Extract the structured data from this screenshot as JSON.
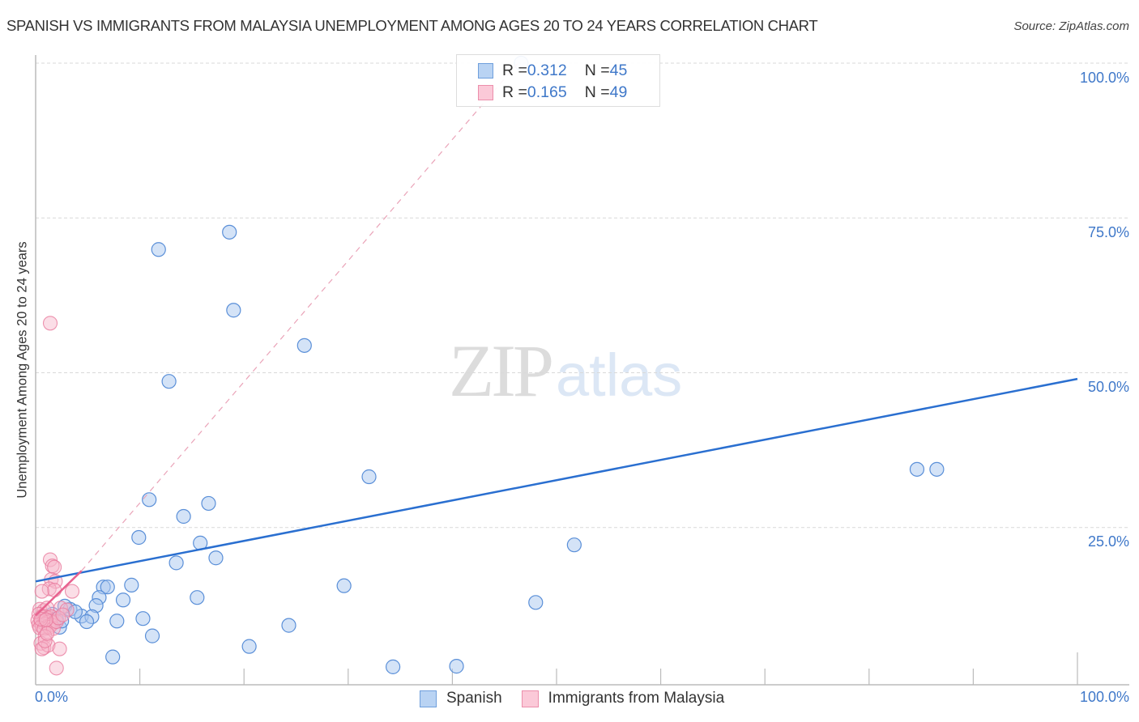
{
  "header": {
    "title": "SPANISH VS IMMIGRANTS FROM MALAYSIA UNEMPLOYMENT AMONG AGES 20 TO 24 YEARS CORRELATION CHART",
    "source": "Source: ZipAtlas.com"
  },
  "watermark": {
    "zip": "ZIP",
    "atlas": "atlas"
  },
  "axes": {
    "ylabel": "Unemployment Among Ages 20 to 24 years",
    "y_ticks": [
      "100.0%",
      "75.0%",
      "50.0%",
      "25.0%"
    ],
    "x_min_label": "0.0%",
    "x_max_label": "100.0%"
  },
  "legend": {
    "rows": [
      {
        "series": "Spanish",
        "r_label": "R = ",
        "r_value": "0.312",
        "n_label": "N = ",
        "n_value": "45",
        "color": "#a9c8f0",
        "border": "#6f9fdc"
      },
      {
        "series": "Immigrants from Malaysia",
        "r_label": "R = ",
        "r_value": "0.165",
        "n_label": "N = ",
        "n_value": "49",
        "color": "#f9c3d3",
        "border": "#ec8eab"
      }
    ],
    "bottom": [
      "Spanish",
      "Immigrants from Malaysia"
    ]
  },
  "colors": {
    "blue_fill": "#a9c8f0",
    "blue_stroke": "#5a8fd8",
    "blue_line": "#2a6fd0",
    "pink_fill": "#f7b6c9",
    "pink_stroke": "#e8799c",
    "pink_line": "#e8628f",
    "axis_text": "#3f78c9",
    "grid": "#d9d9d9"
  },
  "chart_data": {
    "type": "scatter",
    "title": "SPANISH VS IMMIGRANTS FROM MALAYSIA UNEMPLOYMENT AMONG AGES 20 TO 24 YEARS CORRELATION CHART",
    "xlabel": "",
    "ylabel": "Unemployment Among Ages 20 to 24 years",
    "xlim": [
      0,
      100
    ],
    "ylim": [
      0,
      100
    ],
    "x_tick_labels": [
      "0.0%",
      "100.0%"
    ],
    "y_tick_labels": [
      "25.0%",
      "50.0%",
      "75.0%",
      "100.0%"
    ],
    "grid": "horizontal dashed",
    "legend_position": "top-center and bottom",
    "series": [
      {
        "name": "Spanish",
        "R": 0.312,
        "N": 45,
        "trend": {
          "x": [
            0,
            100
          ],
          "y": [
            16.3,
            49.0
          ]
        },
        "points": [
          [
            46.6,
            100.0
          ],
          [
            18.6,
            72.7
          ],
          [
            11.8,
            69.9
          ],
          [
            19.0,
            60.1
          ],
          [
            25.8,
            54.4
          ],
          [
            12.8,
            48.6
          ],
          [
            84.6,
            34.4
          ],
          [
            86.5,
            34.4
          ],
          [
            32.0,
            33.2
          ],
          [
            10.9,
            29.5
          ],
          [
            16.6,
            28.9
          ],
          [
            14.2,
            26.8
          ],
          [
            9.9,
            23.4
          ],
          [
            15.8,
            22.5
          ],
          [
            51.7,
            22.2
          ],
          [
            17.3,
            20.1
          ],
          [
            13.5,
            19.3
          ],
          [
            6.5,
            15.4
          ],
          [
            6.9,
            15.4
          ],
          [
            9.2,
            15.7
          ],
          [
            29.6,
            15.6
          ],
          [
            6.1,
            13.7
          ],
          [
            15.5,
            13.7
          ],
          [
            8.4,
            13.3
          ],
          [
            48.0,
            12.9
          ],
          [
            5.8,
            12.4
          ],
          [
            3.3,
            11.8
          ],
          [
            4.4,
            10.7
          ],
          [
            10.3,
            10.3
          ],
          [
            5.4,
            10.6
          ],
          [
            7.8,
            9.9
          ],
          [
            4.9,
            9.8
          ],
          [
            24.3,
            9.2
          ],
          [
            2.3,
            8.9
          ],
          [
            11.2,
            7.5
          ],
          [
            20.5,
            5.8
          ],
          [
            7.4,
            4.1
          ],
          [
            34.3,
            2.5
          ],
          [
            40.4,
            2.6
          ],
          [
            1.6,
            11.0
          ],
          [
            2.0,
            10.2
          ],
          [
            2.8,
            12.3
          ],
          [
            1.2,
            9.6
          ],
          [
            3.8,
            11.4
          ],
          [
            2.5,
            9.9
          ]
        ]
      },
      {
        "name": "Immigrants from Malaysia",
        "R": 0.165,
        "N": 49,
        "trend": {
          "x": [
            0,
            4.4
          ],
          "y": [
            10.8,
            18.0
          ],
          "dashed_extension": {
            "x": [
              4.4,
              46.3
            ],
            "y": [
              18.0,
              100.0
            ]
          }
        },
        "points": [
          [
            1.4,
            58.0
          ],
          [
            1.4,
            19.8
          ],
          [
            1.6,
            18.8
          ],
          [
            1.8,
            18.6
          ],
          [
            1.5,
            16.6
          ],
          [
            1.9,
            16.3
          ],
          [
            1.3,
            15.1
          ],
          [
            1.8,
            14.9
          ],
          [
            3.5,
            14.7
          ],
          [
            0.6,
            14.7
          ],
          [
            0.4,
            11.8
          ],
          [
            0.8,
            11.6
          ],
          [
            1.1,
            12.0
          ],
          [
            2.4,
            12.0
          ],
          [
            3.0,
            11.7
          ],
          [
            0.3,
            11.0
          ],
          [
            0.6,
            10.6
          ],
          [
            0.9,
            10.6
          ],
          [
            1.2,
            10.4
          ],
          [
            1.5,
            10.6
          ],
          [
            0.2,
            10.0
          ],
          [
            0.5,
            9.8
          ],
          [
            0.8,
            9.9
          ],
          [
            1.1,
            9.7
          ],
          [
            1.4,
            9.9
          ],
          [
            1.7,
            9.6
          ],
          [
            0.3,
            9.3
          ],
          [
            0.6,
            9.1
          ],
          [
            0.9,
            9.4
          ],
          [
            1.2,
            9.1
          ],
          [
            1.5,
            9.3
          ],
          [
            0.4,
            8.8
          ],
          [
            0.8,
            8.6
          ],
          [
            1.3,
            8.9
          ],
          [
            1.7,
            8.7
          ],
          [
            2.0,
            9.8
          ],
          [
            2.2,
            10.4
          ],
          [
            0.5,
            10.2
          ],
          [
            1.0,
            10.1
          ],
          [
            2.6,
            10.9
          ],
          [
            0.9,
            7.4
          ],
          [
            0.5,
            6.3
          ],
          [
            0.8,
            5.6
          ],
          [
            1.2,
            6.0
          ],
          [
            0.6,
            5.4
          ],
          [
            2.3,
            5.4
          ],
          [
            0.9,
            6.7
          ],
          [
            1.1,
            7.9
          ],
          [
            2.0,
            2.3
          ]
        ]
      }
    ]
  }
}
